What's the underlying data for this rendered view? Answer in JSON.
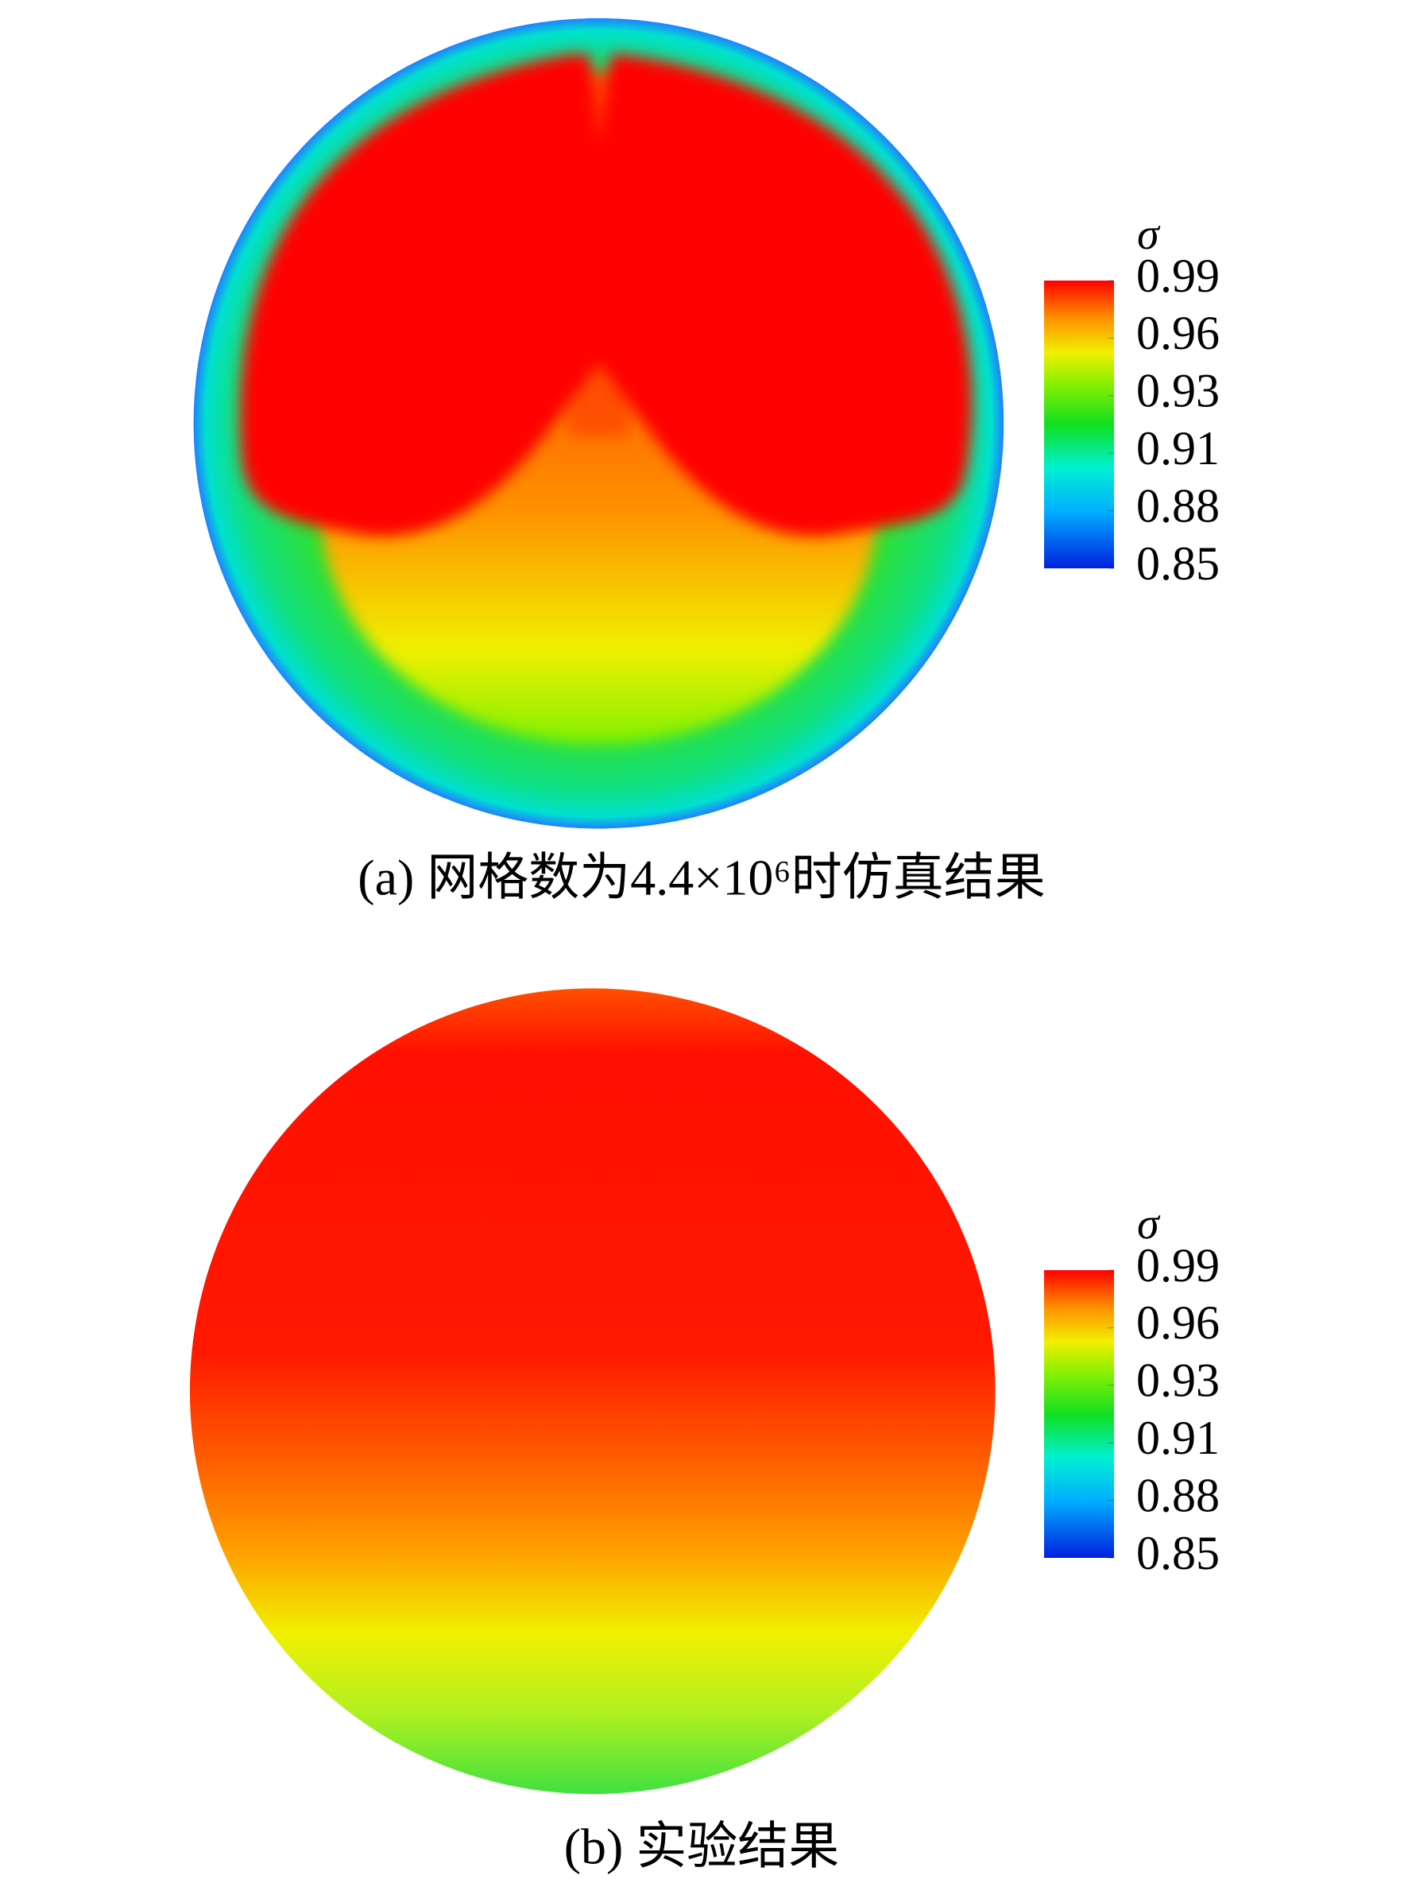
{
  "chart_data": [
    {
      "type": "contour",
      "colorbar_label": "σ",
      "clim": [
        0.85,
        0.99
      ],
      "colorbar_ticks": [
        0.85,
        {
          "value": 0.878,
          "label": "0.88"
        },
        {
          "value": 0.906,
          "label": "0.91"
        },
        {
          "value": 0.934,
          "label": "0.93"
        },
        {
          "value": 0.962,
          "label": "0.96"
        },
        0.99
      ],
      "caption": "(a) 网格数为4.4×10⁶时仿真结果"
    },
    {
      "type": "contour",
      "colorbar_label": "σ",
      "clim": [
        0.85,
        0.99
      ],
      "colorbar_ticks": [
        0.85,
        {
          "value": 0.878,
          "label": "0.88"
        },
        {
          "value": 0.906,
          "label": "0.91"
        },
        {
          "value": 0.934,
          "label": "0.93"
        },
        {
          "value": 0.962,
          "label": "0.96"
        },
        0.99
      ],
      "caption": "(b) 实验结果"
    }
  ]
}
